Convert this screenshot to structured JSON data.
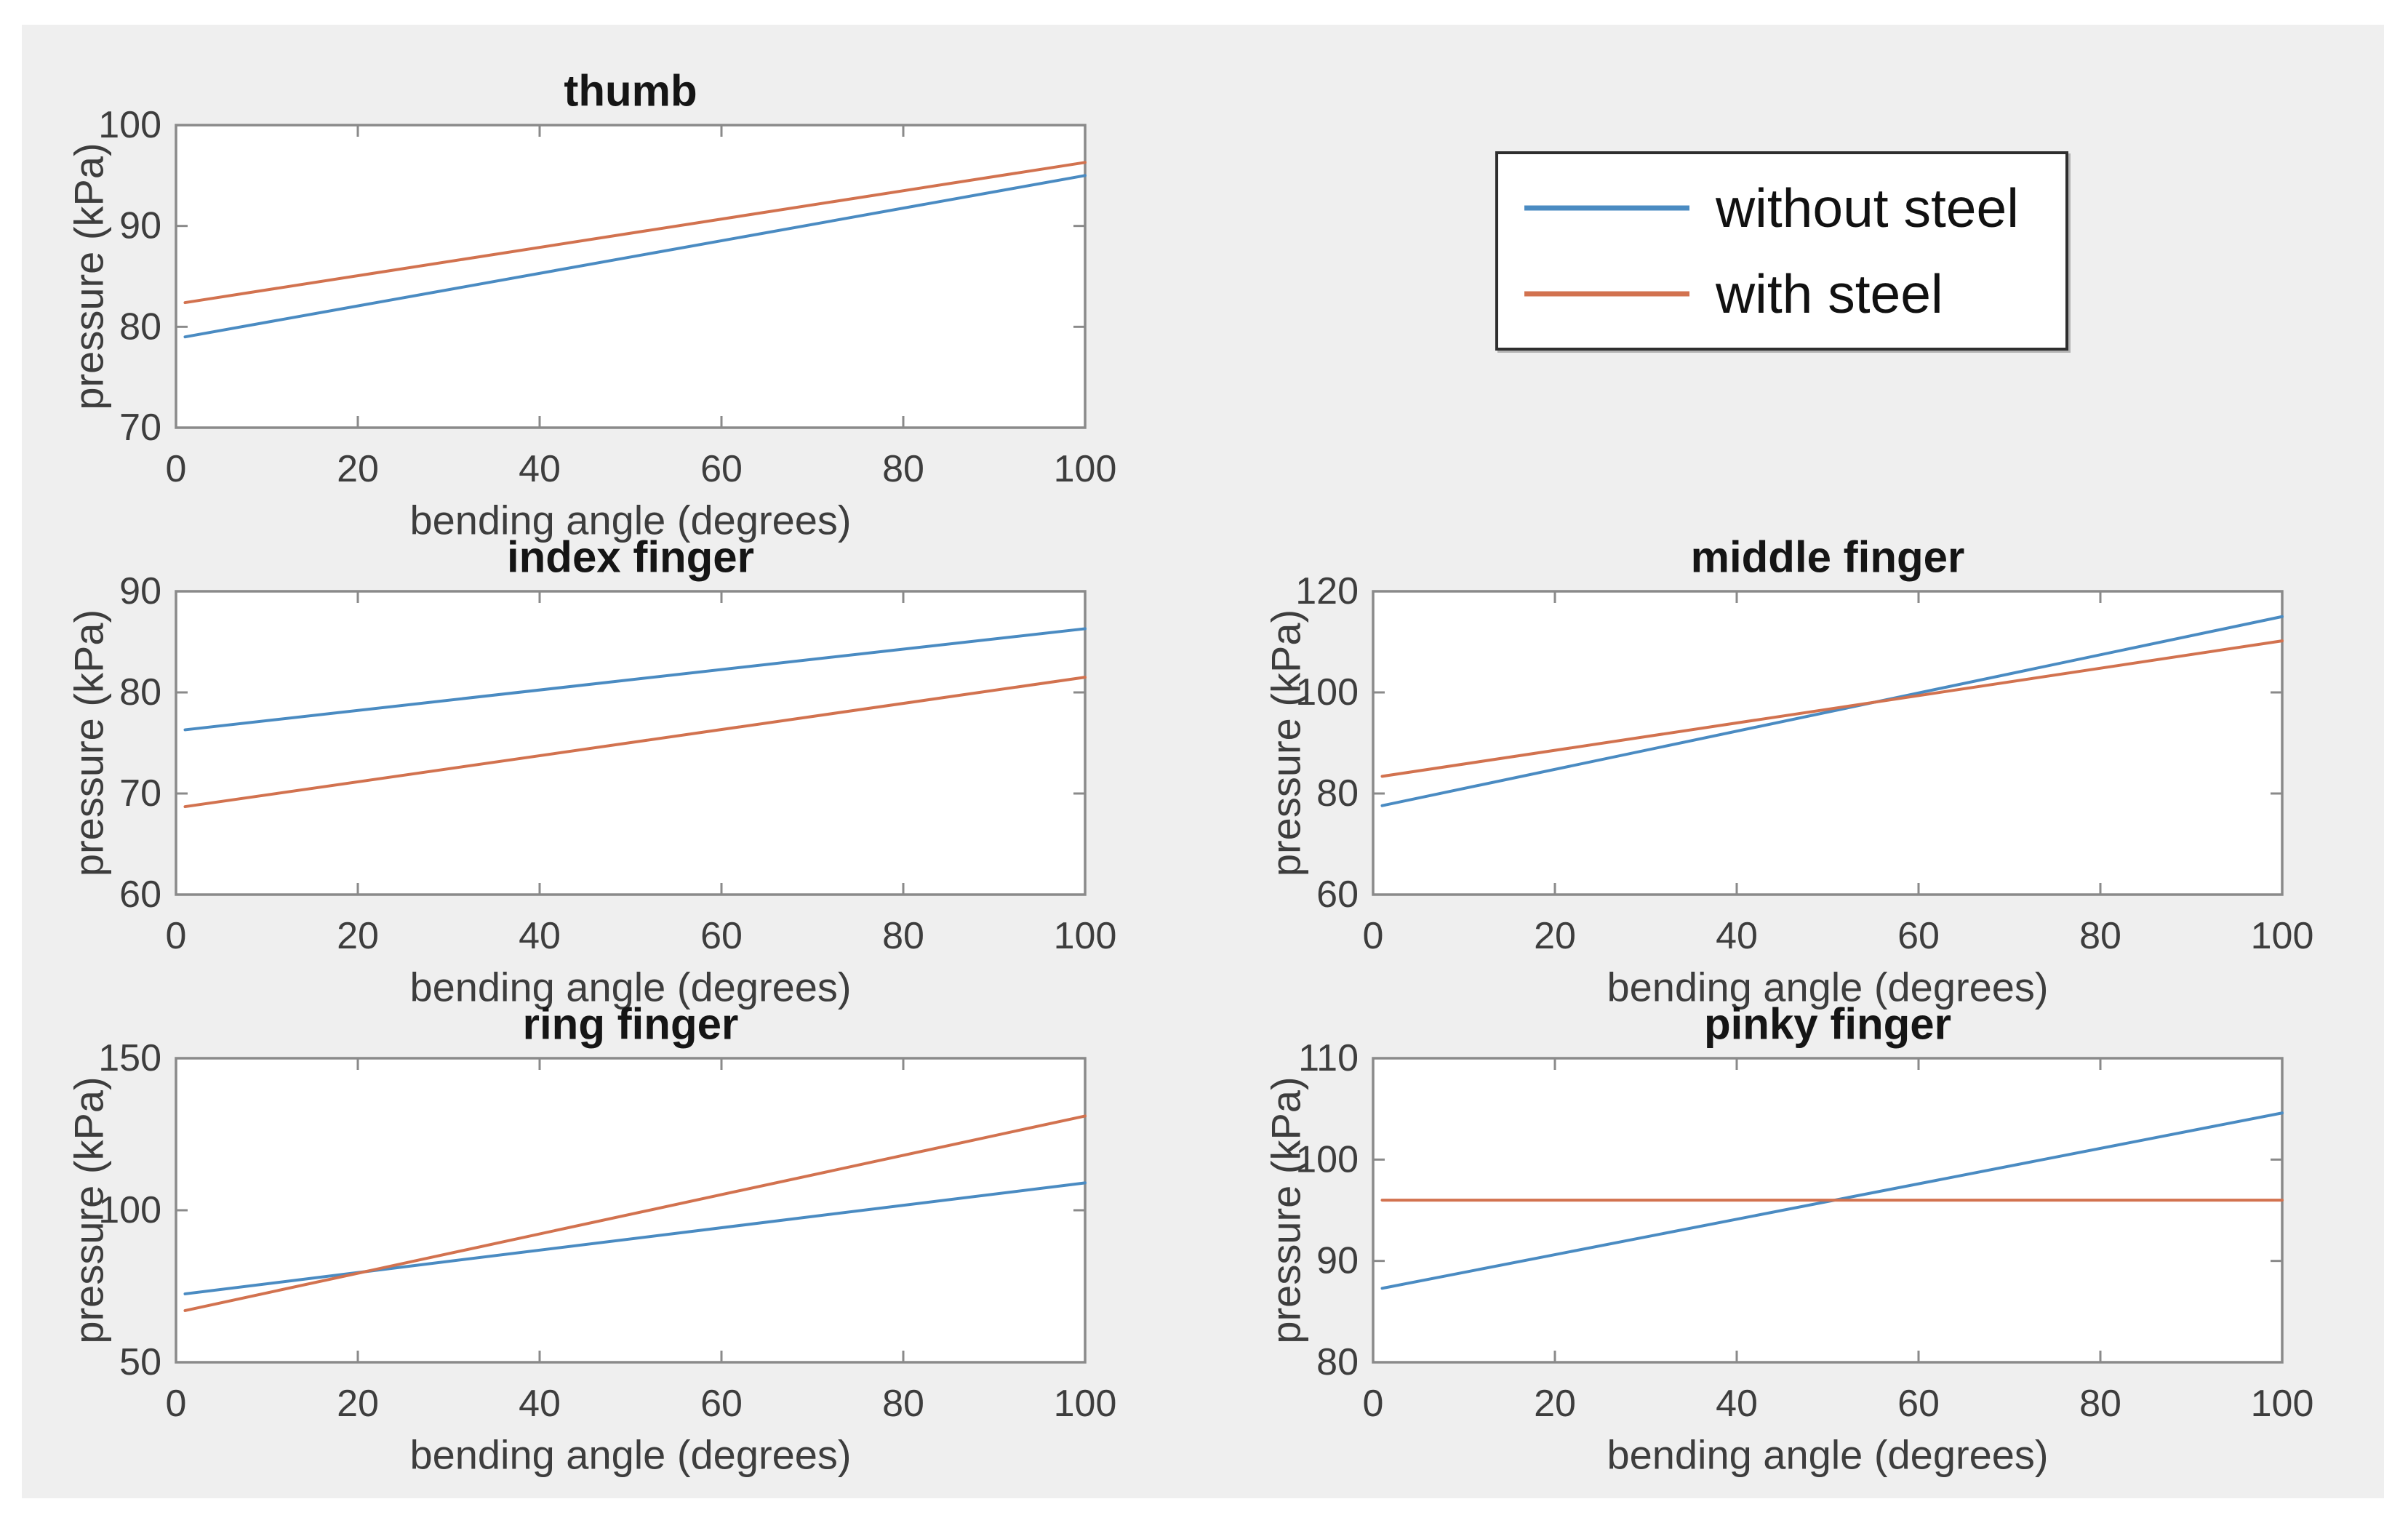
{
  "figure": {
    "background": "#efefef",
    "page_background": "#ffffff"
  },
  "legend": {
    "entries": [
      {
        "label": "without steel",
        "color": "#4a8bc2"
      },
      {
        "label": "with steel",
        "color": "#d2724f"
      }
    ],
    "position": "top-right"
  },
  "chart_data": [
    {
      "id": "thumb",
      "type": "line",
      "title": "thumb",
      "xlabel": "bending angle (degrees)",
      "ylabel": "pressure (kPa)",
      "xlim": [
        0,
        100
      ],
      "xticks": [
        0,
        20,
        40,
        60,
        80,
        100
      ],
      "ylim": [
        70,
        100
      ],
      "yticks": [
        70,
        80,
        90,
        100
      ],
      "grid": false,
      "series": [
        {
          "name": "without steel",
          "color": "#4a8bc2",
          "x": [
            1,
            100
          ],
          "y": [
            79.0,
            95.0
          ]
        },
        {
          "name": "with steel",
          "color": "#d2724f",
          "x": [
            1,
            100
          ],
          "y": [
            82.4,
            96.3
          ]
        }
      ]
    },
    {
      "id": "index-finger",
      "type": "line",
      "title": "index finger",
      "xlabel": "bending angle (degrees)",
      "ylabel": "pressure (kPa)",
      "xlim": [
        0,
        100
      ],
      "xticks": [
        0,
        20,
        40,
        60,
        80,
        100
      ],
      "ylim": [
        60,
        90
      ],
      "yticks": [
        60,
        70,
        80,
        90
      ],
      "grid": false,
      "series": [
        {
          "name": "without steel",
          "color": "#4a8bc2",
          "x": [
            1,
            100
          ],
          "y": [
            76.3,
            86.3
          ]
        },
        {
          "name": "with steel",
          "color": "#d2724f",
          "x": [
            1,
            100
          ],
          "y": [
            68.7,
            81.5
          ]
        }
      ]
    },
    {
      "id": "middle-finger",
      "type": "line",
      "title": "middle finger",
      "xlabel": "bending angle (degrees)",
      "ylabel": "pressure (kPa)",
      "xlim": [
        0,
        100
      ],
      "xticks": [
        0,
        20,
        40,
        60,
        80,
        100
      ],
      "ylim": [
        60,
        120
      ],
      "yticks": [
        60,
        80,
        100,
        120
      ],
      "grid": false,
      "series": [
        {
          "name": "without steel",
          "color": "#4a8bc2",
          "x": [
            1,
            100
          ],
          "y": [
            77.6,
            115.0
          ]
        },
        {
          "name": "with steel",
          "color": "#d2724f",
          "x": [
            1,
            100
          ],
          "y": [
            83.4,
            110.2
          ]
        }
      ]
    },
    {
      "id": "ring-finger",
      "type": "line",
      "title": "ring finger",
      "xlabel": "bending angle (degrees)",
      "ylabel": "pressure (kPa)",
      "xlim": [
        0,
        100
      ],
      "xticks": [
        0,
        20,
        40,
        60,
        80,
        100
      ],
      "ylim": [
        50,
        150
      ],
      "yticks": [
        50,
        100,
        150
      ],
      "grid": false,
      "series": [
        {
          "name": "without steel",
          "color": "#4a8bc2",
          "x": [
            1,
            100
          ],
          "y": [
            72.5,
            109.0
          ]
        },
        {
          "name": "with steel",
          "color": "#d2724f",
          "x": [
            1,
            100
          ],
          "y": [
            67.0,
            131.0
          ]
        }
      ]
    },
    {
      "id": "pinky-finger",
      "type": "line",
      "title": "pinky finger",
      "xlabel": "bending angle (degrees)",
      "ylabel": "pressure (kPa)",
      "xlim": [
        0,
        100
      ],
      "xticks": [
        0,
        20,
        40,
        60,
        80,
        100
      ],
      "ylim": [
        80,
        110
      ],
      "yticks": [
        80,
        90,
        100,
        110
      ],
      "grid": false,
      "series": [
        {
          "name": "without steel",
          "color": "#4a8bc2",
          "x": [
            1,
            100
          ],
          "y": [
            87.3,
            104.6
          ]
        },
        {
          "name": "with steel",
          "color": "#d2724f",
          "x": [
            1,
            100
          ],
          "y": [
            96.0,
            96.0
          ]
        }
      ]
    }
  ]
}
